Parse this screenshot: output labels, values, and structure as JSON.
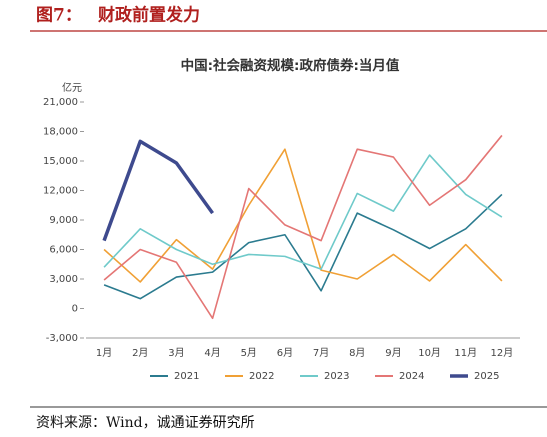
{
  "header": {
    "label": "图7：",
    "title": "财政前置发力"
  },
  "footer": {
    "source": "资料来源：Wind，诚通证券研究所"
  },
  "chart_data": {
    "type": "line",
    "title": "中国:社会融资规模:政府债券:当月值",
    "y_label": "亿元",
    "categories": [
      "1月",
      "2月",
      "3月",
      "4月",
      "5月",
      "6月",
      "7月",
      "8月",
      "9月",
      "10月",
      "11月",
      "12月"
    ],
    "ylim": [
      -3000,
      21000
    ],
    "yticks": [
      {
        "value": -3000,
        "label": "-3,000"
      },
      0,
      {
        "value": 3000,
        "label": "3,000"
      },
      {
        "value": 6000,
        "label": "6,000"
      },
      {
        "value": 9000,
        "label": "9,000"
      },
      {
        "value": 12000,
        "label": "12,000"
      },
      {
        "value": 15000,
        "label": "15,000"
      },
      {
        "value": 18000,
        "label": "18,000"
      },
      {
        "value": 21000,
        "label": "21,000"
      }
    ],
    "grid": false,
    "legend": "bottom",
    "series": [
      {
        "name": "2021",
        "color": "#2b7b8f",
        "values": [
          2400,
          1000,
          3200,
          3700,
          6700,
          7500,
          1800,
          9700,
          8000,
          6100,
          8100,
          11600
        ]
      },
      {
        "name": "2022",
        "color": "#f0a035",
        "values": [
          6000,
          2700,
          7000,
          4000,
          10500,
          16200,
          3900,
          3000,
          5500,
          2800,
          6500,
          2800
        ]
      },
      {
        "name": "2023",
        "color": "#6fcaca",
        "values": [
          4200,
          8100,
          6000,
          4500,
          5500,
          5300,
          4000,
          11700,
          9900,
          15600,
          11600,
          9300
        ]
      },
      {
        "name": "2024",
        "color": "#e47675",
        "values": [
          2900,
          6000,
          4700,
          -1000,
          12200,
          8500,
          6900,
          16200,
          15400,
          10500,
          13100,
          17600
        ]
      },
      {
        "name": "2025",
        "color": "#3e4a8e",
        "width": 3.5,
        "values": [
          6900,
          17000,
          14800,
          9700,
          null,
          null,
          null,
          null,
          null,
          null,
          null,
          null
        ]
      }
    ]
  }
}
